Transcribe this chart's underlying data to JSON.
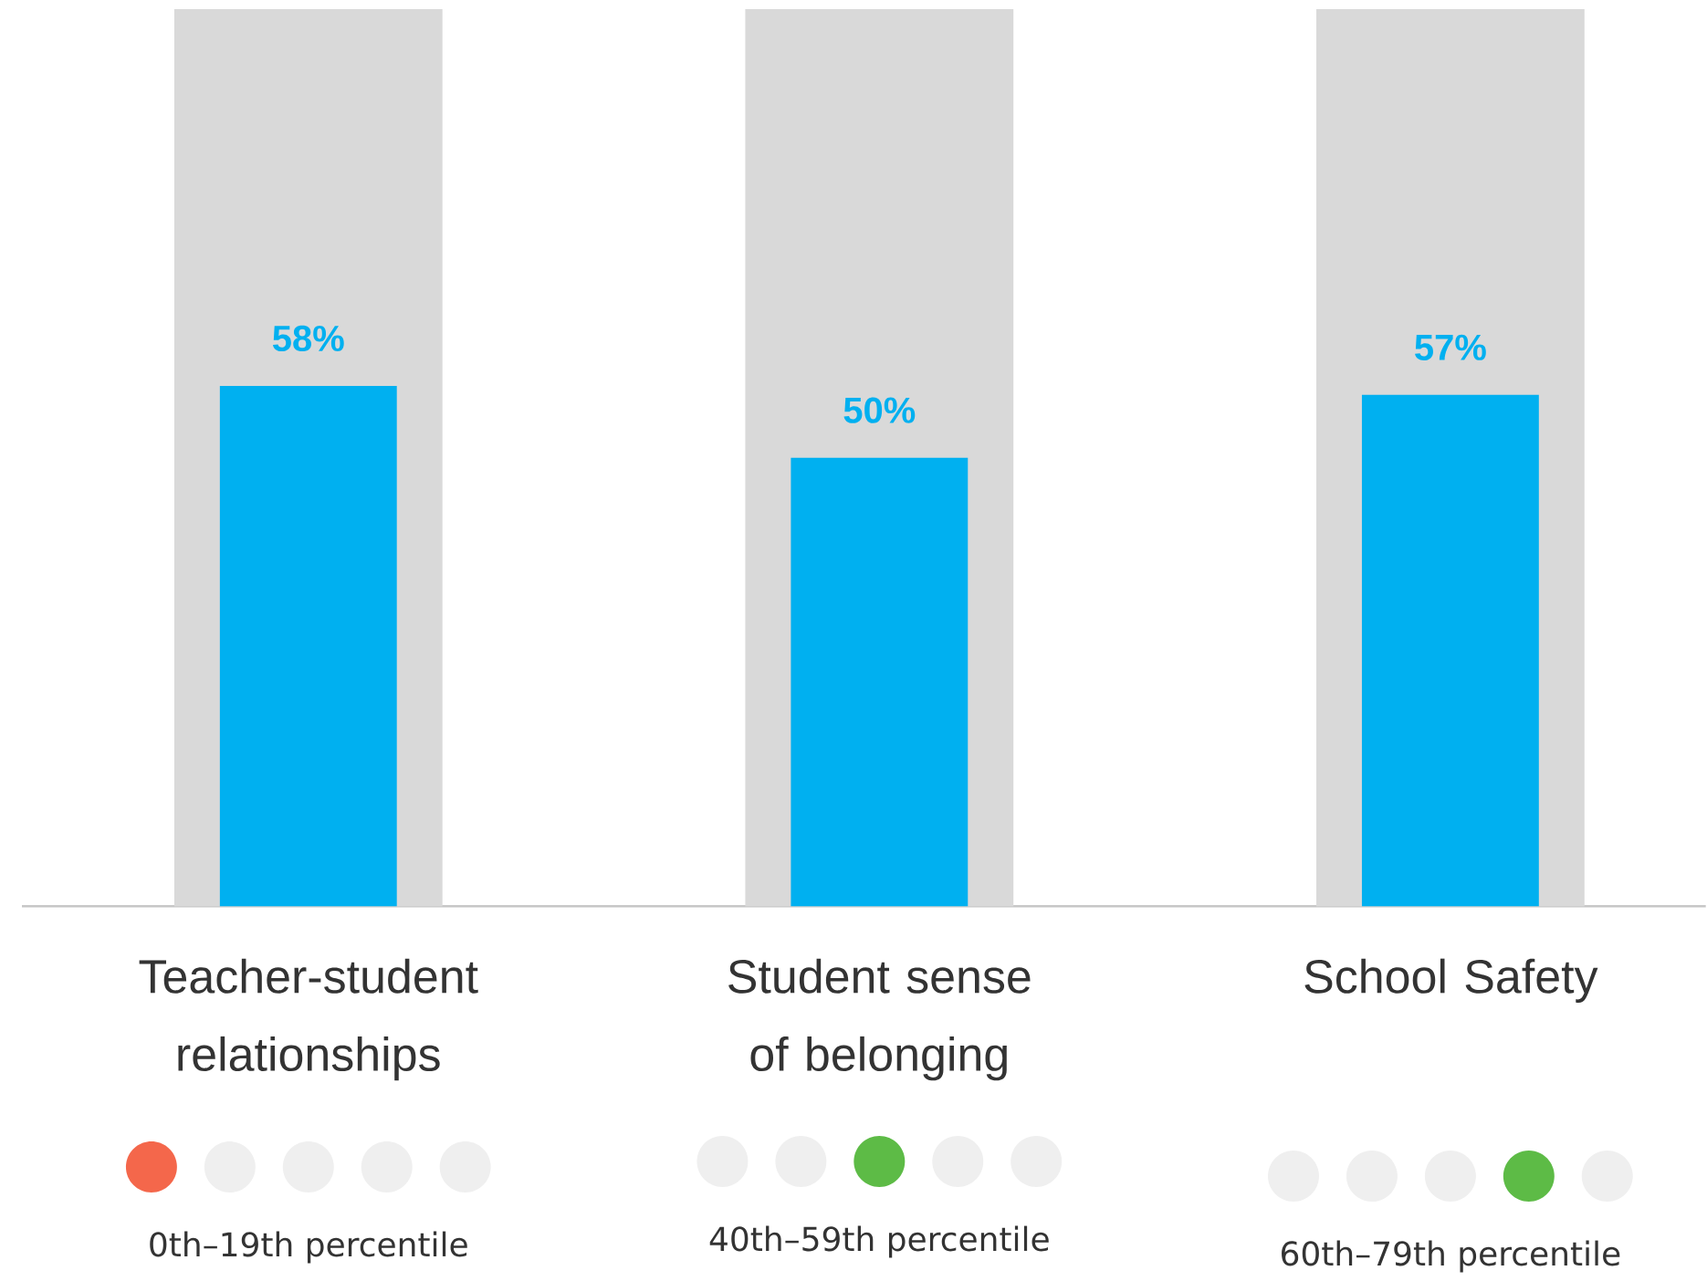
{
  "chart_data": {
    "type": "bar",
    "categories": [
      "Teacher-student relationships",
      "Student sense of belonging",
      "School Safety"
    ],
    "series": [
      {
        "color": "#d9d9d9",
        "values": [
          100,
          100,
          100
        ]
      },
      {
        "color": "#00b0f0",
        "values": [
          58,
          50,
          57
        ],
        "value_labels": [
          "58%",
          "50%",
          "57%"
        ]
      }
    ],
    "ylim": [
      0,
      100
    ],
    "tick_labels": "x",
    "annotations": [
      "0th–19th percentile",
      "40th–59th percentile",
      "60th–79th percentile"
    ]
  }
}
